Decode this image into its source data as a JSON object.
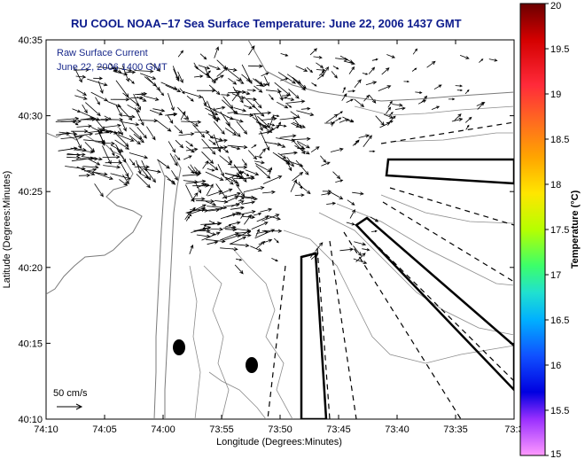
{
  "title": "RU COOL   NOAA−17  Sea Surface Temperature:  June 22, 2006 1437 GMT",
  "legend": {
    "line1": "Raw Surface Current",
    "line2": "June 22, 2006 1400 GMT"
  },
  "scale_label": "50 cm/s",
  "axes": {
    "xlabel": "Longitude (Degrees:Minutes)",
    "ylabel": "Latitude (Degrees:Minutes)",
    "xticks": [
      "74:10",
      "74:05",
      "74:00",
      "73:55",
      "73:50",
      "73:45",
      "73:40",
      "73:35",
      "73:3"
    ],
    "yticks": [
      "40:35",
      "40:30",
      "40:25",
      "40:20",
      "40:15",
      "40:10"
    ]
  },
  "colorbar": {
    "label": "Temperature (°C)",
    "ticks": [
      "20",
      "19.5",
      "19",
      "18.5",
      "18",
      "17.5",
      "17",
      "16.5",
      "16",
      "15.5",
      "15"
    ],
    "min": 15,
    "max": 20
  }
}
